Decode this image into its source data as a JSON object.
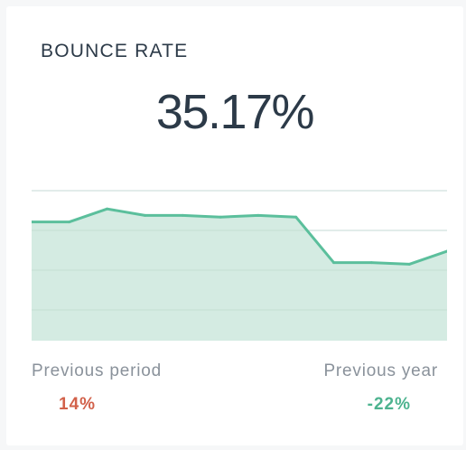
{
  "widget": {
    "title": "BOUNCE RATE",
    "value": "35.17%"
  },
  "comparisons": {
    "previous_period": {
      "label": "Previous period",
      "value": "14%",
      "color": "#d2614a"
    },
    "previous_year": {
      "label": "Previous year",
      "value": "-22%",
      "color": "#4db38f"
    }
  },
  "colors": {
    "line": "#5bbf9c",
    "area": "#cfe9df",
    "grid": "#d9dde1"
  },
  "chart_data": {
    "type": "area",
    "x": [
      0,
      1,
      2,
      3,
      4,
      5,
      6,
      7,
      8,
      9,
      10,
      11
    ],
    "values": [
      0.73,
      0.73,
      0.81,
      0.77,
      0.77,
      0.76,
      0.77,
      0.76,
      0.48,
      0.48,
      0.47,
      0.55
    ],
    "ylim": [
      0,
      1
    ],
    "grid": true,
    "gridlines": 4
  }
}
